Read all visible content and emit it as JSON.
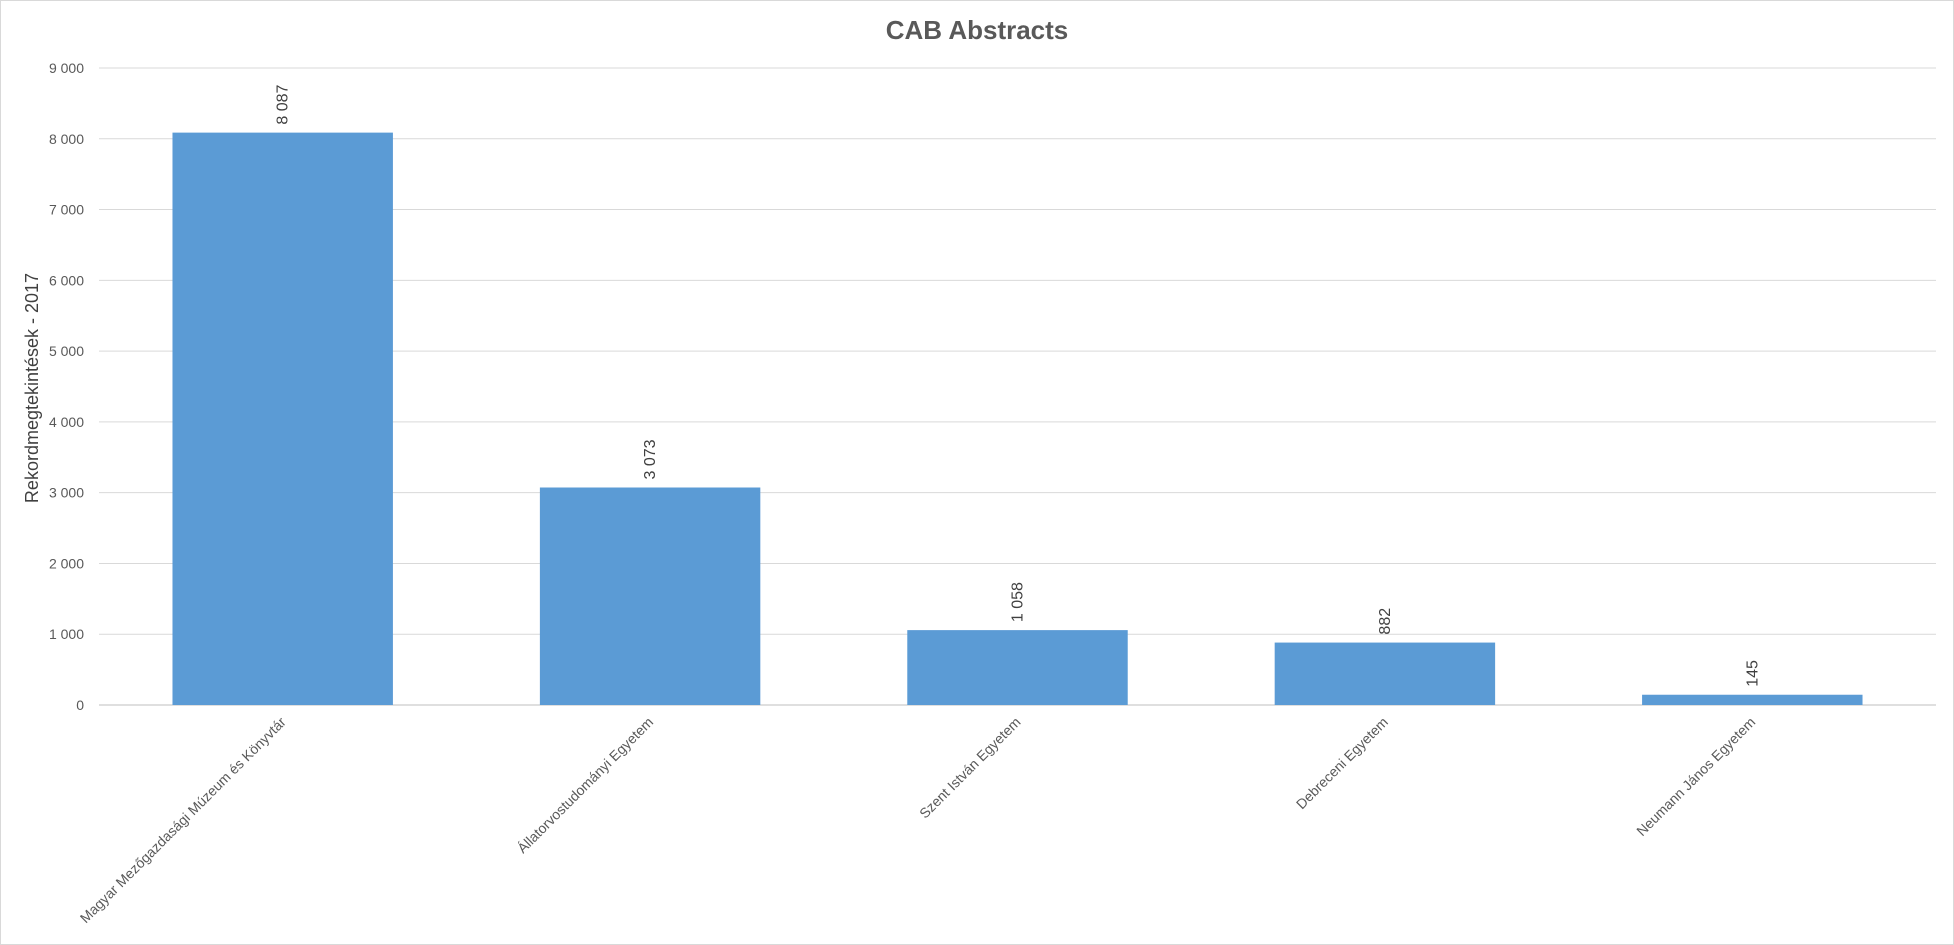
{
  "chart_data": {
    "type": "bar",
    "title": "CAB Abstracts",
    "ylabel": "Rekordmegtekintések - 2017",
    "xlabel": "",
    "ylim": [
      0,
      9000
    ],
    "ytick_step": 1000,
    "ytick_labels": [
      "0",
      "1 000",
      "2 000",
      "3 000",
      "4 000",
      "5 000",
      "6 000",
      "7 000",
      "8 000",
      "9 000"
    ],
    "categories": [
      "Magyar Mezőgazdasági Múzeum és Könyvtár",
      "Állatorvostudományi Egyetem",
      "Szent István Egyetem",
      "Debreceni Egyetem",
      "Neumann János Egyetem"
    ],
    "values": [
      8087,
      3073,
      1058,
      882,
      145
    ],
    "value_labels": [
      "8 087",
      "3 073",
      "1 058",
      "882",
      "145"
    ],
    "bar_color": "#5b9bd5",
    "grid": true,
    "legend": "none"
  }
}
